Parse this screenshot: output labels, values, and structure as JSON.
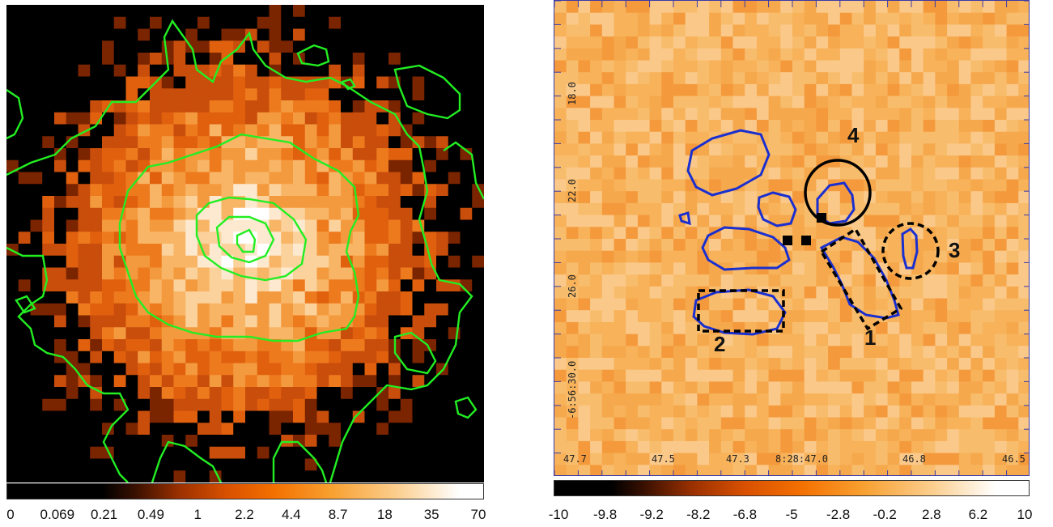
{
  "left_panel": {
    "colorbar_ticks": [
      "0",
      "0.069",
      "0.21",
      "0.49",
      "1",
      "2.2",
      "4.4",
      "8.7",
      "18",
      "35",
      "70"
    ],
    "colors": {
      "contour": "#22ee22",
      "low": "#000000",
      "mid": "#e05a10",
      "high": "#ffffff"
    }
  },
  "right_panel": {
    "x_axis_labels": [
      "47.7",
      "47.5",
      "47.3",
      "8:28:47.0",
      "46.8",
      "46.5"
    ],
    "y_axis_labels": [
      "18.0",
      "22.0",
      "26.0",
      "-6:56:30.0"
    ],
    "region_labels": [
      "1",
      "2",
      "3",
      "4"
    ],
    "colorbar_ticks": [
      "-10",
      "-9.8",
      "-9.2",
      "-8.2",
      "-6.8",
      "-5",
      "-2.8",
      "-0.2",
      "2.8",
      "6.2",
      "10"
    ],
    "colors": {
      "contour": "#1a2fd0",
      "region": "#000000",
      "background": "#f7b552"
    }
  }
}
